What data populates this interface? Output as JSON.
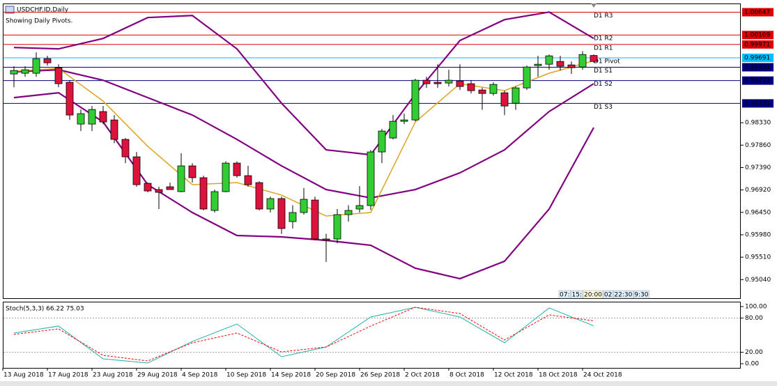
{
  "header": {
    "symbol": "USDCHF.ID,Daily",
    "note": "Showing Daily Pivots."
  },
  "time_scale": [
    "07:",
    "15:",
    "20:00",
    "02",
    "22:30",
    "9:30"
  ],
  "chart_data": [
    {
      "type": "candlestick",
      "up_color": "#32cd32",
      "down_color": "#dc143c",
      "open": [
        0.99352,
        0.99367,
        0.99367,
        0.99673,
        0.99483,
        0.99177,
        0.98301,
        0.98301,
        0.98564,
        0.98388,
        0.9798,
        0.97615,
        0.9706,
        0.96928,
        0.96987,
        0.96885,
        0.97425,
        0.97177,
        0.9649,
        0.96885,
        0.97483,
        0.9722,
        0.97074,
        0.9652,
        0.96739,
        0.96257,
        0.96447,
        0.96709,
        0.95892,
        0.95892,
        0.96403,
        0.9652,
        0.96593,
        0.97717,
        0.98009,
        0.98359,
        0.98388,
        0.99221,
        0.99177,
        0.99162,
        0.99206,
        0.99148,
        0.99016,
        0.98943,
        0.98958,
        0.98739,
        0.9906,
        0.99527,
        0.99556,
        0.99615,
        0.99542,
        0.99498,
        0.9974
      ],
      "high": [
        0.99513,
        0.99513,
        0.99805,
        0.99732,
        0.99556,
        0.99221,
        0.98607,
        0.9868,
        0.9868,
        0.98491,
        0.98009,
        0.97717,
        0.97074,
        0.96987,
        0.97074,
        0.97688,
        0.97483,
        0.9722,
        0.96928,
        0.9752,
        0.9752,
        0.97425,
        0.971,
        0.9678,
        0.9678,
        0.966,
        0.96958,
        0.9678,
        0.96,
        0.9652,
        0.966,
        0.97,
        0.9776,
        0.982,
        0.98491,
        0.9852,
        0.9925,
        0.99294,
        0.99556,
        0.9944,
        0.99556,
        0.99221,
        0.9906,
        0.99177,
        0.99002,
        0.99089,
        0.99527,
        0.99732,
        0.9976,
        0.99732,
        0.99615,
        0.9983,
        0.9976
      ],
      "low": [
        0.99075,
        0.99294,
        0.99294,
        0.99527,
        0.99075,
        0.98388,
        0.98155,
        0.98155,
        0.98301,
        0.979,
        0.97483,
        0.96987,
        0.9687,
        0.9652,
        0.96928,
        0.9687,
        0.97074,
        0.9649,
        0.96447,
        0.9687,
        0.97177,
        0.96987,
        0.9649,
        0.96447,
        0.96,
        0.96111,
        0.96403,
        0.95863,
        0.9541,
        0.958,
        0.96257,
        0.96447,
        0.965,
        0.97483,
        0.9798,
        0.98301,
        0.98359,
        0.9906,
        0.9906,
        0.99089,
        0.99016,
        0.98943,
        0.986,
        0.989,
        0.98491,
        0.986,
        0.99016,
        0.99294,
        0.9944,
        0.99425,
        0.99352,
        0.9944,
        0.99586
      ],
      "close": [
        0.99425,
        0.9944,
        0.99673,
        0.99586,
        0.99148,
        0.98491,
        0.9852,
        0.98607,
        0.98345,
        0.9798,
        0.97615,
        0.97031,
        0.96899,
        0.9687,
        0.96928,
        0.97425,
        0.97177,
        0.9652,
        0.96885,
        0.97483,
        0.9722,
        0.97031,
        0.9652,
        0.96739,
        0.96111,
        0.96447,
        0.96724,
        0.95892,
        0.95863,
        0.96403,
        0.9649,
        0.96593,
        0.97717,
        0.98155,
        0.98359,
        0.98388,
        0.99221,
        0.99148,
        0.99148,
        0.99221,
        0.99089,
        0.99002,
        0.98943,
        0.99133,
        0.9868,
        0.9906,
        0.99498,
        0.99556,
        0.99732,
        0.99513,
        0.99483,
        0.9976,
        0.99615
      ],
      "lines": [
        {
          "color": "#800080",
          "x": [
            0,
            4,
            8,
            12,
            16,
            20,
            24,
            28,
            32,
            36,
            40,
            44,
            48,
            52
          ],
          "values": [
            0.99907,
            0.99878,
            1.00097,
            1.00535,
            1.00578,
            0.99878,
            0.98739,
            0.97761,
            0.97658,
            0.98929,
            1.00053,
            1.00491,
            1.00651,
            1.00097
          ]
        },
        {
          "color": "#800080",
          "x": [
            0,
            4,
            8,
            12,
            16,
            20,
            24,
            28,
            32,
            36,
            40,
            44,
            48,
            52
          ],
          "values": [
            0.99396,
            0.9944,
            0.99221,
            0.98856,
            0.98491,
            0.9798,
            0.97425,
            0.96928,
            0.96753,
            0.96928,
            0.97279,
            0.97761,
            0.98564,
            0.99148
          ]
        },
        {
          "color": "#800080",
          "x": [
            0,
            4,
            8,
            12,
            16,
            20,
            24,
            28,
            32,
            36,
            40,
            44,
            48,
            52
          ],
          "values": [
            0.98856,
            0.98958,
            0.98345,
            0.97031,
            0.96447,
            0.95965,
            0.95936,
            0.95863,
            0.9576,
            0.95279,
            0.9506,
            0.95425,
            0.9652,
            0.98228
          ]
        },
        {
          "color": "#daa520",
          "x": [
            0,
            4,
            8,
            12,
            16,
            20,
            24,
            28,
            32,
            36,
            40,
            44,
            48,
            52
          ],
          "values": [
            0.9941,
            0.99469,
            0.98783,
            0.97834,
            0.97031,
            0.97074,
            0.96812,
            0.96374,
            0.96447,
            0.98345,
            0.99148,
            0.99002,
            0.99367,
            0.9963
          ]
        }
      ],
      "pivots": [
        {
          "label": "D1 R3",
          "value": 1.00647,
          "color": "#dd0000"
        },
        {
          "label": "D1 R2",
          "value": 1.00169,
          "color": "#dd0000"
        },
        {
          "label": "D1 R1",
          "value": 0.99971,
          "color": "#dd0000"
        },
        {
          "label": "D1 Pivot",
          "value": 0.99691,
          "color": "#00bfff"
        },
        {
          "label": "D1 S1",
          "value": 0.99493,
          "color": "#000080"
        },
        {
          "label": "D1 S2",
          "value": 0.99213,
          "color": "#000080"
        },
        {
          "label": "D1 S3",
          "value": 0.98735,
          "color": "#000080"
        }
      ],
      "ylim": [
        0.9465,
        1.0083
      ],
      "yticks": [
        {
          "value": 0.9833,
          "label": "0.98330"
        },
        {
          "value": 0.9786,
          "label": "0.97860"
        },
        {
          "value": 0.9739,
          "label": "0.97390"
        },
        {
          "value": 0.9692,
          "label": "0.96920"
        },
        {
          "value": 0.9645,
          "label": "0.96450"
        },
        {
          "value": 0.9598,
          "label": "0.95980"
        },
        {
          "value": 0.9551,
          "label": "0.95510"
        },
        {
          "value": 0.9504,
          "label": "0.95040"
        }
      ],
      "x_labels": [
        "13 Aug 2018",
        "17 Aug 2018",
        "23 Aug 2018",
        "29 Aug 2018",
        "4 Sep 2018",
        "10 Sep 2018",
        "14 Sep 2018",
        "20 Sep 2018",
        "26 Sep 2018",
        "2 Oct 2018",
        "8 Oct 2018",
        "12 Oct 2018",
        "18 Oct 2018",
        "24 Oct 2018"
      ]
    },
    {
      "type": "line",
      "title": "Stoch(5,3,3) 66.22 75.03",
      "series": [
        {
          "color": "#20b2aa",
          "x": [
            0,
            4,
            8,
            12,
            16,
            20,
            24,
            28,
            32,
            36,
            40,
            44,
            48,
            52
          ],
          "values": [
            53.7,
            65.9,
            8.5,
            1.2,
            39,
            69.5,
            12.2,
            29.3,
            81.7,
            98.8,
            81.7,
            36.6,
            97.6,
            66.22
          ]
        },
        {
          "color": "#ff0000",
          "dashed": true,
          "x": [
            0,
            4,
            8,
            12,
            16,
            20,
            24,
            28,
            32,
            36,
            40,
            44,
            48,
            52
          ],
          "values": [
            51.2,
            61,
            14.6,
            4.9,
            36.6,
            53.7,
            20.7,
            29.3,
            65.9,
            98.8,
            87.8,
            41.5,
            85.4,
            75.03
          ]
        }
      ],
      "ylim": [
        -7.3,
        107.3
      ],
      "yticks": [
        {
          "value": 100,
          "label": "100.00"
        },
        {
          "value": 80,
          "label": "80.00"
        },
        {
          "value": 20,
          "label": "20.00"
        },
        {
          "value": 0,
          "label": "0.00"
        }
      ]
    }
  ]
}
